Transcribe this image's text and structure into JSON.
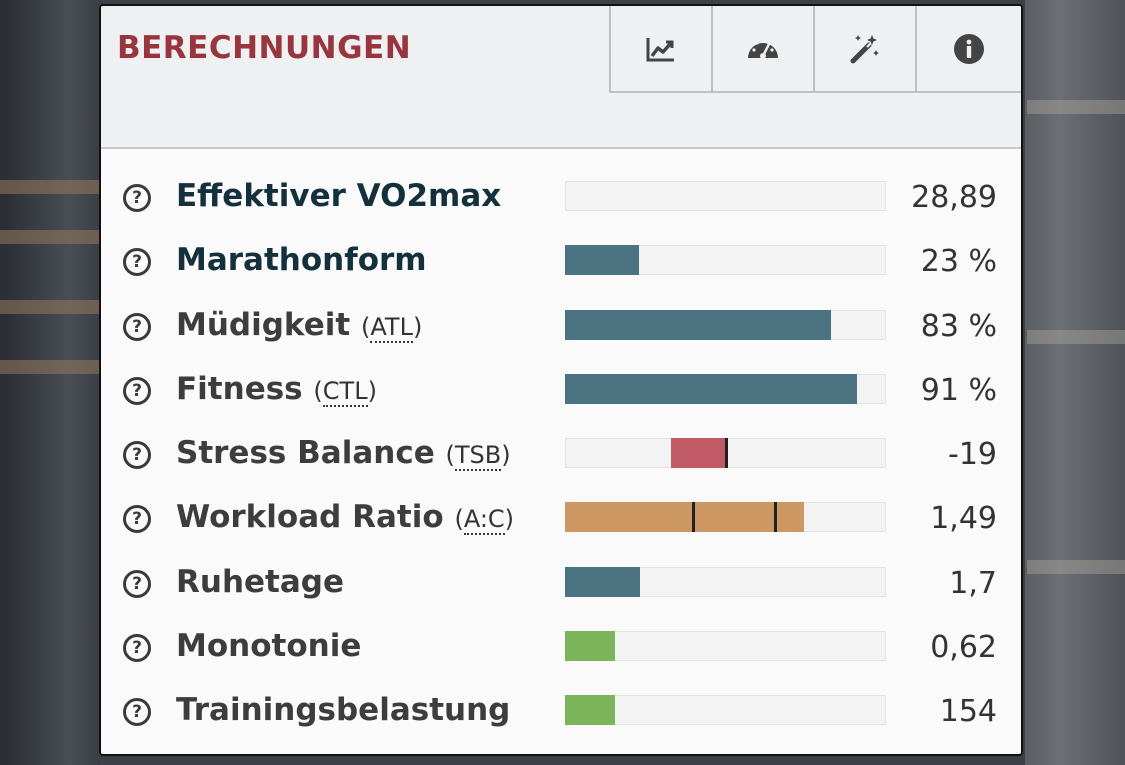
{
  "panel": {
    "title": "BERECHNUNGEN",
    "tabs": [
      {
        "name": "chart-line-icon"
      },
      {
        "name": "tachometer-icon"
      },
      {
        "name": "magic-wand-icon"
      },
      {
        "name": "info-icon"
      }
    ]
  },
  "colors": {
    "title": "#98353f",
    "teal": "#4b7382",
    "red": "#c05a65",
    "orange": "#cc9762",
    "green": "#7bb45a"
  },
  "metrics": [
    {
      "label": "Effektiver VO2max",
      "abbr": "",
      "value": "28,89",
      "fill_start": 0,
      "fill_end": 0,
      "color": "",
      "markers": []
    },
    {
      "label": "Marathonform",
      "abbr": "",
      "value": "23 %",
      "fill_start": 0,
      "fill_end": 0.23,
      "color": "#4b7382",
      "markers": []
    },
    {
      "label": "Müdigkeit",
      "abbr": "ATL",
      "value": "83 %",
      "fill_start": 0,
      "fill_end": 0.83,
      "color": "#4b7382",
      "markers": []
    },
    {
      "label": "Fitness",
      "abbr": "CTL",
      "value": "91 %",
      "fill_start": 0,
      "fill_end": 0.91,
      "color": "#4b7382",
      "markers": []
    },
    {
      "label": "Stress Balance",
      "abbr": "TSB",
      "value": "-19",
      "fill_start": 0.33,
      "fill_end": 0.5,
      "color": "#c05a65",
      "markers": [
        0.5
      ]
    },
    {
      "label": "Workload Ratio",
      "abbr": "A:C",
      "value": "1,49",
      "fill_start": 0,
      "fill_end": 0.745,
      "color": "#cc9762",
      "markers": [
        0.4,
        0.655
      ]
    },
    {
      "label": "Ruhetage",
      "abbr": "",
      "value": "1,7",
      "fill_start": 0,
      "fill_end": 0.235,
      "color": "#4b7382",
      "markers": []
    },
    {
      "label": "Monotonie",
      "abbr": "",
      "value": "0,62",
      "fill_start": 0,
      "fill_end": 0.155,
      "color": "#7bb45a",
      "markers": []
    },
    {
      "label": "Trainingsbelastung",
      "abbr": "",
      "value": "154",
      "fill_start": 0,
      "fill_end": 0.155,
      "color": "#7bb45a",
      "markers": []
    }
  ]
}
